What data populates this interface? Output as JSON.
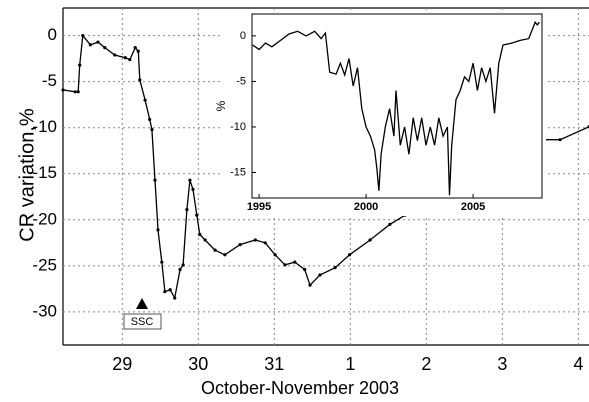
{
  "chart_data": [
    {
      "type": "line",
      "xlabel": "October-November 2003",
      "ylabel": "CR variation,%",
      "annotation": "SSC",
      "grid": true,
      "markers": true,
      "xlim": [
        28.22,
        35.14
      ],
      "ylim": [
        -33.6,
        3
      ],
      "xticks": [
        29,
        30,
        31,
        {
          "value": 32,
          "label": "1"
        },
        {
          "value": 33,
          "label": "2"
        },
        {
          "value": 34,
          "label": "3"
        },
        {
          "value": 35,
          "label": "4"
        }
      ],
      "yticks": [
        0,
        -5,
        -10,
        -15,
        -20,
        -25,
        -30
      ],
      "series": [
        {
          "color": "#000000",
          "x": [
            28.22,
            28.38,
            28.42,
            28.44,
            28.48,
            28.58,
            28.68,
            28.77,
            28.9,
            29.04,
            29.1,
            29.17,
            29.21,
            29.23,
            29.3,
            29.36,
            29.39,
            29.43,
            29.47,
            29.52,
            29.56,
            29.63,
            29.69,
            29.76,
            29.8,
            29.85,
            29.89,
            29.93,
            29.98,
            30.02,
            30.09,
            30.22,
            30.35,
            30.55,
            30.75,
            30.88,
            31.01,
            31.14,
            31.27,
            31.4,
            31.47,
            31.6,
            31.8,
            31.99,
            32.26,
            32.52,
            32.72,
            33.6,
            34.5,
            34.76,
            35.14
          ],
          "values": [
            -5.9,
            -6.1,
            -6.1,
            -3.2,
            0,
            -1,
            -0.7,
            -1.3,
            -2.1,
            -2.4,
            -2.6,
            -1.3,
            -1.7,
            -4.8,
            -7,
            -9.1,
            -10.2,
            -15.7,
            -21.1,
            -24.6,
            -27.8,
            -27.6,
            -28.5,
            -25.4,
            -24.9,
            -18.9,
            -15.7,
            -16.7,
            -19.5,
            -21.6,
            -22.2,
            -23.3,
            -23.8,
            -22.7,
            -22.2,
            -22.5,
            -23.8,
            -24.9,
            -24.6,
            -25.4,
            -27.1,
            -26,
            -25.2,
            -23.8,
            -22.2,
            -20.5,
            -19.5,
            null,
            -11.3,
            -11.3,
            -9.9
          ]
        }
      ]
    },
    {
      "type": "line",
      "ylabel": "%",
      "grid": false,
      "markers": false,
      "xlim": [
        1994.67,
        2008.22
      ],
      "ylim": [
        -17.8,
        2.4
      ],
      "xticks": [
        1995,
        2000,
        2005
      ],
      "yticks": [
        0,
        -5,
        -10,
        -15
      ],
      "series": [
        {
          "color": "#000000",
          "x": [
            1994.7,
            1995.0,
            1995.3,
            1995.6,
            1996.0,
            1996.4,
            1996.8,
            1997.2,
            1997.6,
            1997.9,
            1998.1,
            1998.3,
            1998.6,
            1998.8,
            1999.0,
            1999.2,
            1999.4,
            1999.6,
            1999.8,
            2000.0,
            2000.2,
            2000.4,
            2000.5,
            2000.6,
            2000.7,
            2000.9,
            2001.1,
            2001.3,
            2001.4,
            2001.6,
            2001.8,
            2002.0,
            2002.2,
            2002.4,
            2002.6,
            2002.8,
            2003.0,
            2003.2,
            2003.4,
            2003.6,
            2003.8,
            2003.9,
            2004.0,
            2004.2,
            2004.4,
            2004.6,
            2004.8,
            2005.0,
            2005.2,
            2005.4,
            2005.6,
            2005.8,
            2006.0,
            2006.2,
            2006.4,
            2006.8,
            2007.2,
            2007.6,
            2007.9,
            2008.0,
            2008.1
          ],
          "values": [
            -1,
            -1.5,
            -0.8,
            -1.2,
            -0.5,
            0.2,
            0.5,
            0,
            0.5,
            -0.3,
            0.3,
            -4,
            -4.2,
            -3,
            -4.3,
            -2.5,
            -5.5,
            -3.5,
            -8,
            -10,
            -11,
            -12.5,
            -14.5,
            -17,
            -13,
            -10,
            -8,
            -11,
            -6,
            -12,
            -10,
            -13,
            -9,
            -11.5,
            -9,
            -12,
            -10,
            -12,
            -9,
            -11,
            -10,
            -17.5,
            -12,
            -7,
            -6,
            -4.5,
            -5,
            -3,
            -6,
            -3.5,
            -5,
            -3.5,
            -8.5,
            -3,
            -1,
            -0.8,
            -0.5,
            -0.3,
            1.5,
            1.2,
            1.5
          ]
        }
      ]
    }
  ]
}
